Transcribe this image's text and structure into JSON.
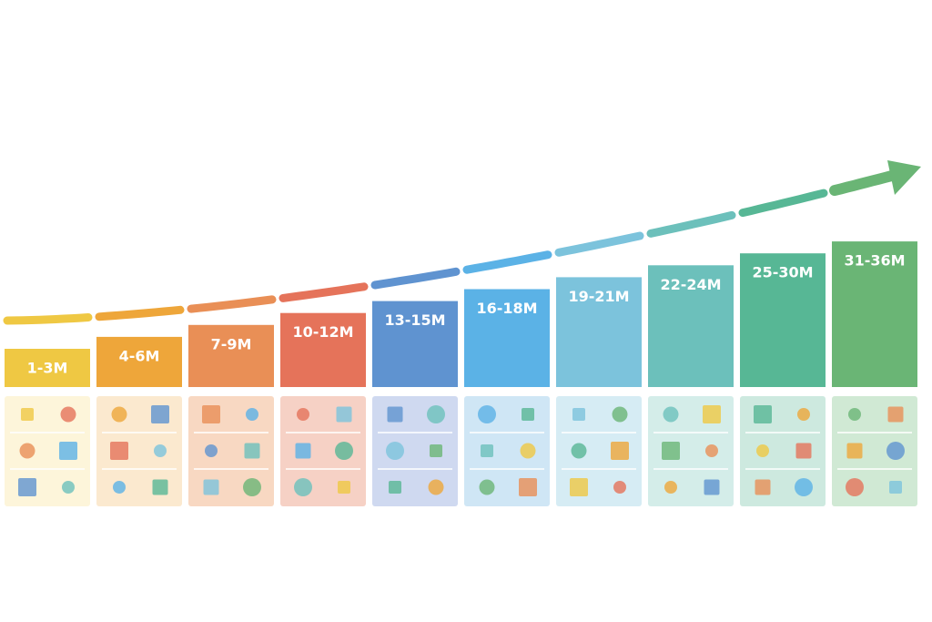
{
  "stages": [
    {
      "label": "1-3M",
      "color": "#efc843",
      "panel": "#fdf5da"
    },
    {
      "label": "4-6M",
      "color": "#eea63a",
      "panel": "#fbe9cf"
    },
    {
      "label": "7-9M",
      "color": "#e98f56",
      "panel": "#f8d8c2"
    },
    {
      "label": "10-12M",
      "color": "#e5735a",
      "panel": "#f6d1c5"
    },
    {
      "label": "13-15M",
      "color": "#5f93d0",
      "panel": "#cfd9f0"
    },
    {
      "label": "16-18M",
      "color": "#5bb2e6",
      "panel": "#cfe6f5"
    },
    {
      "label": "19-21M",
      "color": "#7cc3dc",
      "panel": "#d6ecf4"
    },
    {
      "label": "22-24M",
      "color": "#6cc0bb",
      "panel": "#d4ede9"
    },
    {
      "label": "25-30M",
      "color": "#57b795",
      "panel": "#cde9df"
    },
    {
      "label": "31-36M",
      "color": "#6ab575",
      "panel": "#d0e9d4"
    }
  ]
}
